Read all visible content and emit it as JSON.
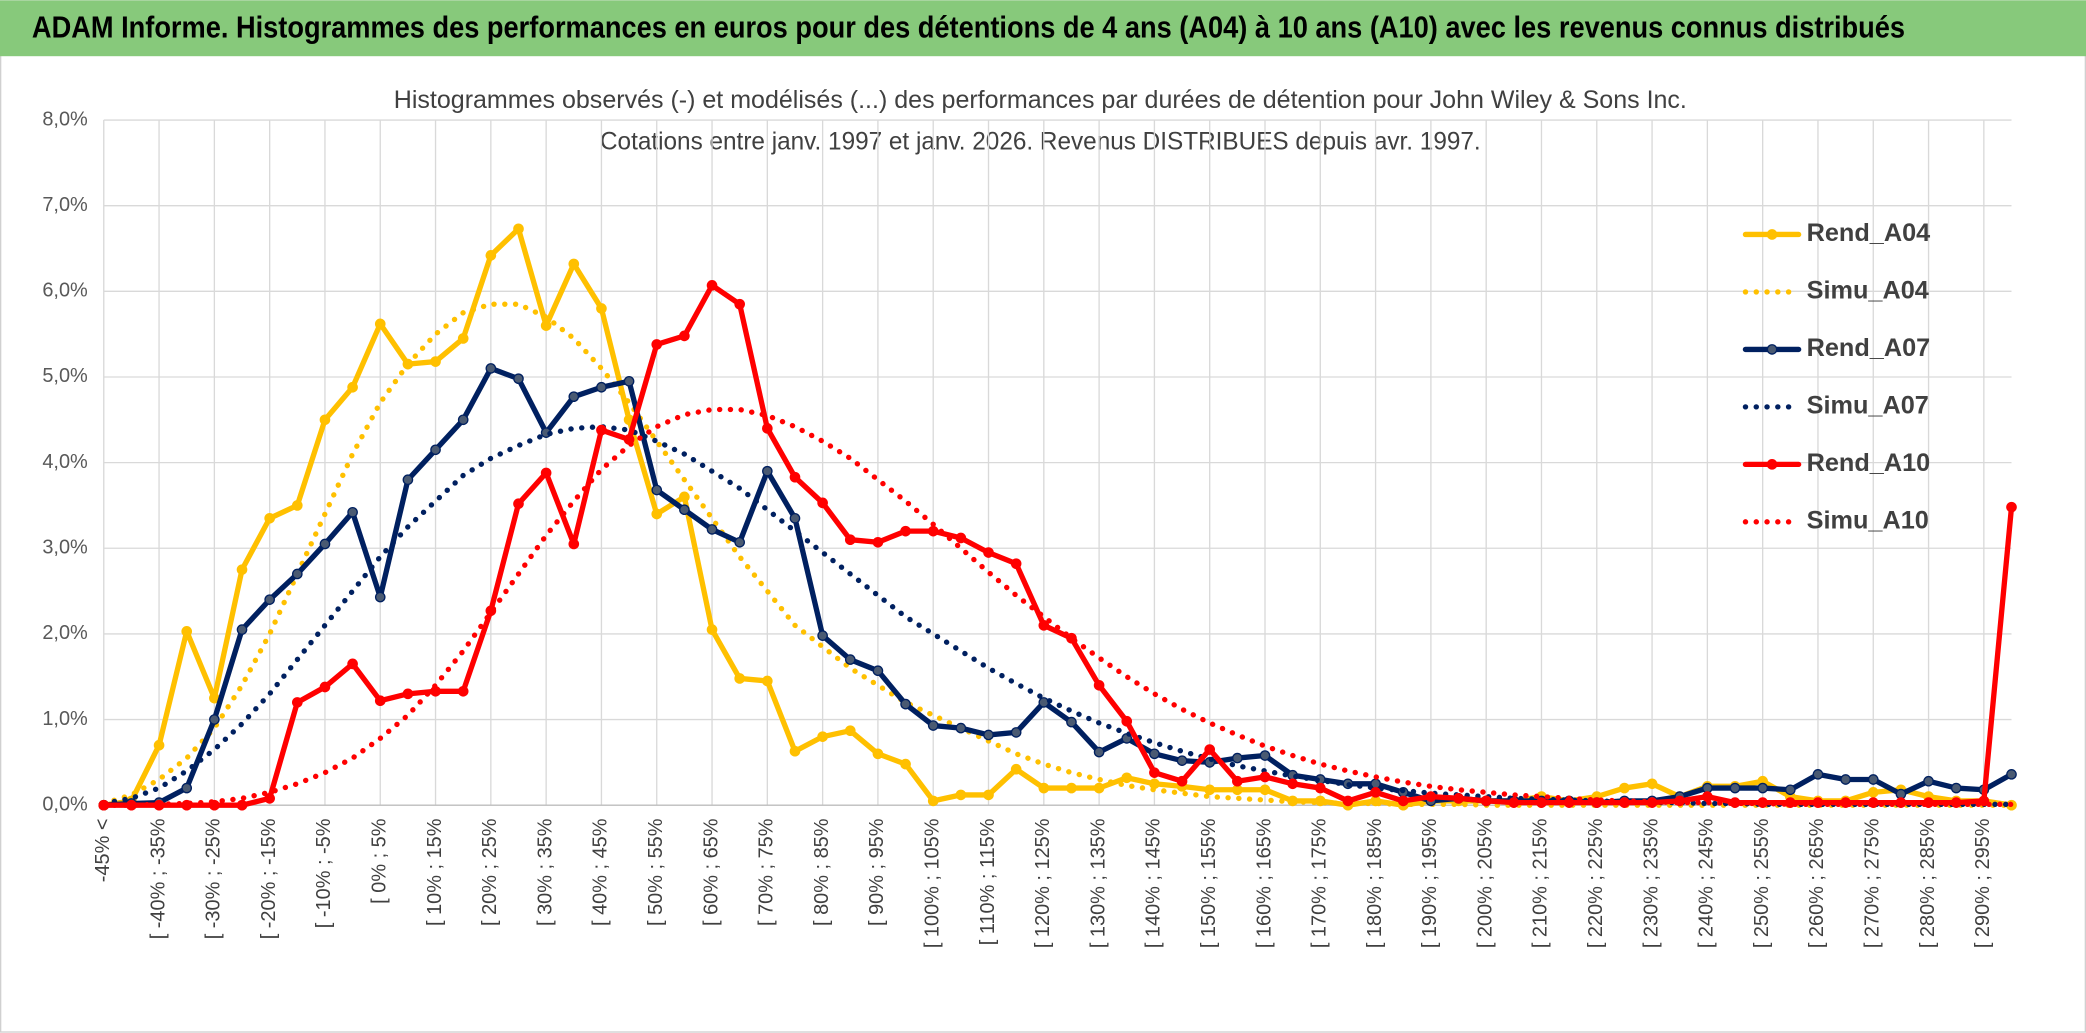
{
  "header": {
    "title": "ADAM Informe. Histogrammes des performances en euros pour des détentions de 4 ans (A04) à 10 ans (A10) avec les revenus connus distribués"
  },
  "chart_data": {
    "type": "line",
    "title": "Histogrammes observés (-) et modélisés (...) des performances par durées de détention pour John Wiley & Sons Inc.",
    "subtitle": "Cotations entre janv. 1997 et janv. 2026. Revenus DISTRIBUES depuis avr. 1997.",
    "categories": [
      "-45% <",
      null,
      "[ -40% ; -35%",
      null,
      "[ -30% ; -25%",
      null,
      "[ -20% ; -15%",
      null,
      "[ -10% ; -5%",
      null,
      "[ 0% ; 5%",
      null,
      "[ 10% ; 15%",
      null,
      "[ 20% ; 25%",
      null,
      "[ 30% ; 35%",
      null,
      "[ 40% ; 45%",
      null,
      "[ 50% ; 55%",
      null,
      "[ 60% ; 65%",
      null,
      "[ 70% ; 75%",
      null,
      "[ 80% ; 85%",
      null,
      "[ 90% ; 95%",
      null,
      "[ 100% ; 105%",
      null,
      "[ 110% ; 115%",
      null,
      "[ 120% ; 125%",
      null,
      "[ 130% ; 135%",
      null,
      "[ 140% ; 145%",
      null,
      "[ 150% ; 155%",
      null,
      "[ 160% ; 165%",
      null,
      "[ 170% ; 175%",
      null,
      "[ 180% ; 185%",
      null,
      "[ 190% ; 195%",
      null,
      "[ 200% ; 205%",
      null,
      "[ 210% ; 215%",
      null,
      "[ 220% ; 225%",
      null,
      "[ 230% ; 235%",
      null,
      "[ 240% ; 245%",
      null,
      "[ 250% ; 255%",
      null,
      "[ 260% ; 265%",
      null,
      "[ 270% ; 275%",
      null,
      "[ 280% ; 285%",
      null,
      "[ 290% ; 295%",
      null
    ],
    "series": [
      {
        "name": "Rend_A04",
        "color": "#FFC000",
        "style": "solid",
        "markers": true,
        "values": [
          0,
          0.05,
          0.7,
          2.03,
          1.25,
          2.75,
          3.35,
          3.5,
          4.5,
          4.88,
          5.62,
          5.15,
          5.18,
          5.45,
          6.42,
          6.73,
          5.6,
          6.32,
          5.8,
          4.5,
          3.4,
          3.6,
          2.05,
          1.48,
          1.45,
          0.63,
          0.8,
          0.87,
          0.6,
          0.48,
          0.05,
          0.12,
          0.12,
          0.42,
          0.2,
          0.2,
          0.2,
          0.32,
          0.25,
          0.22,
          0.18,
          0.18,
          0.18,
          0.05,
          0.05,
          0,
          0.05,
          0,
          0.05,
          0.05,
          0.05,
          0.05,
          0.1,
          0.05,
          0.1,
          0.2,
          0.25,
          0.1,
          0.22,
          0.22,
          0.28,
          0.1,
          0.05,
          0.05,
          0.15,
          0.18,
          0.1,
          0.05,
          0.05,
          0
        ]
      },
      {
        "name": "Simu_A04",
        "color": "#FFC000",
        "style": "dotted",
        "markers": false,
        "values": [
          0.02,
          0.12,
          0.3,
          0.55,
          0.9,
          1.4,
          2.0,
          2.7,
          3.4,
          4.1,
          4.7,
          5.15,
          5.5,
          5.75,
          5.85,
          5.85,
          5.7,
          5.45,
          5.1,
          4.7,
          4.25,
          3.8,
          3.35,
          2.9,
          2.5,
          2.1,
          1.85,
          1.6,
          1.4,
          1.2,
          1.05,
          0.9,
          0.75,
          0.6,
          0.48,
          0.38,
          0.3,
          0.23,
          0.18,
          0.14,
          0.1,
          0.08,
          0.06,
          0.04,
          0.03,
          0.02,
          0.02,
          0.01,
          0.01,
          0.01,
          0,
          0,
          0,
          0,
          0,
          0,
          0,
          0,
          0,
          0,
          0,
          0,
          0,
          0,
          0,
          0,
          0,
          0,
          0,
          0
        ]
      },
      {
        "name": "Rend_A07",
        "color": "#002060",
        "marker_color": "#4a5a72",
        "style": "solid",
        "markers": true,
        "values": [
          0,
          0.02,
          0.03,
          0.2,
          1.0,
          2.05,
          2.4,
          2.7,
          3.05,
          3.42,
          2.43,
          3.8,
          4.15,
          4.5,
          5.1,
          4.98,
          4.35,
          4.77,
          4.88,
          4.95,
          3.68,
          3.45,
          3.22,
          3.07,
          3.9,
          3.35,
          1.98,
          1.7,
          1.57,
          1.18,
          0.93,
          0.9,
          0.82,
          0.85,
          1.2,
          0.97,
          0.62,
          0.78,
          0.6,
          0.52,
          0.5,
          0.55,
          0.58,
          0.35,
          0.3,
          0.25,
          0.25,
          0.15,
          0.05,
          0.08,
          0.05,
          0.05,
          0.05,
          0.05,
          0.03,
          0.05,
          0.05,
          0.1,
          0.2,
          0.2,
          0.2,
          0.18,
          0.36,
          0.3,
          0.3,
          0.13,
          0.28,
          0.2,
          0.18,
          0.36
        ]
      },
      {
        "name": "Simu_A07",
        "color": "#002060",
        "style": "dotted",
        "markers": false,
        "values": [
          0.02,
          0.08,
          0.2,
          0.4,
          0.65,
          0.95,
          1.3,
          1.7,
          2.1,
          2.5,
          2.9,
          3.25,
          3.55,
          3.85,
          4.05,
          4.2,
          4.33,
          4.4,
          4.42,
          4.38,
          4.25,
          4.1,
          3.9,
          3.7,
          3.45,
          3.2,
          2.95,
          2.7,
          2.45,
          2.2,
          2.0,
          1.8,
          1.6,
          1.42,
          1.25,
          1.1,
          0.96,
          0.84,
          0.73,
          0.63,
          0.54,
          0.46,
          0.4,
          0.34,
          0.29,
          0.24,
          0.2,
          0.17,
          0.14,
          0.12,
          0.1,
          0.08,
          0.07,
          0.06,
          0.05,
          0.04,
          0.03,
          0.03,
          0.02,
          0.02,
          0.01,
          0.01,
          0.01,
          0.01,
          0.01,
          0.01,
          0.01,
          0.01,
          0.01,
          0.01
        ]
      },
      {
        "name": "Rend_A10",
        "color": "#FF0000",
        "style": "solid",
        "markers": true,
        "values": [
          0,
          0,
          0,
          0,
          0,
          0,
          0.08,
          1.2,
          1.38,
          1.65,
          1.22,
          1.3,
          1.33,
          1.33,
          2.27,
          3.52,
          3.88,
          3.05,
          4.38,
          4.27,
          5.38,
          5.48,
          6.07,
          5.85,
          4.4,
          3.83,
          3.53,
          3.1,
          3.07,
          3.2,
          3.2,
          3.12,
          2.95,
          2.82,
          2.1,
          1.95,
          1.4,
          0.98,
          0.38,
          0.28,
          0.65,
          0.28,
          0.33,
          0.25,
          0.2,
          0.05,
          0.15,
          0.05,
          0.1,
          0.08,
          0.05,
          0.03,
          0.03,
          0.03,
          0.03,
          0.03,
          0.03,
          0.05,
          0.1,
          0.03,
          0.03,
          0.03,
          0.03,
          0.03,
          0.03,
          0.03,
          0.03,
          0.03,
          0.05,
          3.48
        ]
      },
      {
        "name": "Simu_A10",
        "color": "#FF0000",
        "style": "dotted",
        "markers": false,
        "values": [
          0,
          0,
          0.01,
          0.02,
          0.04,
          0.08,
          0.15,
          0.25,
          0.38,
          0.55,
          0.78,
          1.05,
          1.4,
          1.8,
          2.25,
          2.7,
          3.15,
          3.55,
          3.92,
          4.2,
          4.42,
          4.56,
          4.62,
          4.62,
          4.55,
          4.42,
          4.25,
          4.05,
          3.8,
          3.55,
          3.28,
          3.0,
          2.72,
          2.45,
          2.2,
          1.95,
          1.72,
          1.5,
          1.3,
          1.12,
          0.96,
          0.82,
          0.69,
          0.58,
          0.48,
          0.4,
          0.33,
          0.27,
          0.22,
          0.18,
          0.15,
          0.12,
          0.1,
          0.08,
          0.06,
          0.05,
          0.04,
          0.03,
          0.03,
          0.02,
          0.02,
          0.01,
          0.01,
          0.01,
          0.01,
          0.01,
          0.01,
          0.01,
          0.01,
          0.01
        ]
      }
    ],
    "ylim": [
      0,
      8
    ],
    "yticks": [
      {
        "value": 0,
        "label": "0,0%"
      },
      {
        "value": 1,
        "label": "1,0%"
      },
      {
        "value": 2,
        "label": "2,0%"
      },
      {
        "value": 3,
        "label": "3,0%"
      },
      {
        "value": 4,
        "label": "4,0%"
      },
      {
        "value": 5,
        "label": "5,0%"
      },
      {
        "value": 6,
        "label": "6,0%"
      },
      {
        "value": 7,
        "label": "7,0%"
      },
      {
        "value": 8,
        "label": "8,0%"
      }
    ],
    "grid": true,
    "legend": "right"
  }
}
